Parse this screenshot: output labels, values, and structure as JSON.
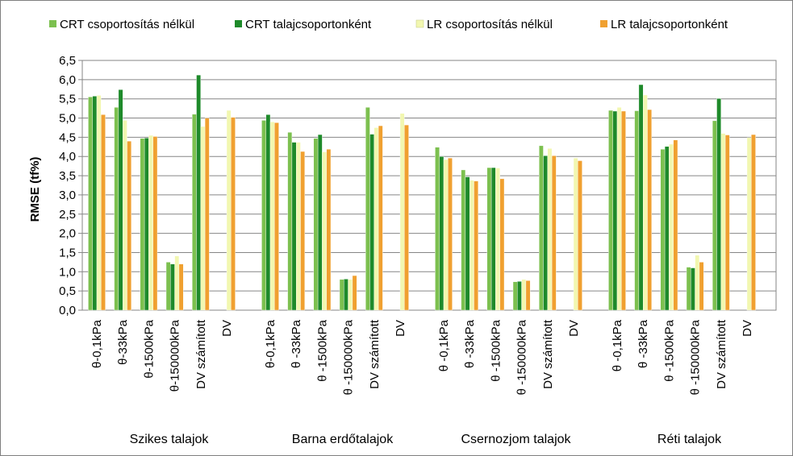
{
  "chart_data": {
    "type": "bar",
    "ylabel": "RMSE (tf%)",
    "ylim": [
      0,
      6.5
    ],
    "ytick_step": 0.5,
    "ytick_labels": [
      "0,0",
      "0,5",
      "1,0",
      "1,5",
      "2,0",
      "2,5",
      "3,0",
      "3,5",
      "4,0",
      "4,5",
      "5,0",
      "5,5",
      "6,0",
      "6,5"
    ],
    "legend_position": "top",
    "series_names": [
      "CRT csoportosítás nélkül",
      "CRT talajcsoportonként",
      "LR csoportosítás nélkül",
      "LR talajcsoportonként"
    ],
    "colors": [
      "#7cc04f",
      "#1e8a2a",
      "#f2f7b0",
      "#f0a030"
    ],
    "groups": [
      {
        "name": "Szikes talajok",
        "categories": [
          "θ-0,1kPa",
          "θ-33kPa",
          "θ-1500kPa",
          "θ-150000kPa",
          "DV számított",
          "DV"
        ],
        "values": [
          [
            5.55,
            5.57,
            5.59,
            5.09
          ],
          [
            5.28,
            5.74,
            4.94,
            4.4
          ],
          [
            4.47,
            4.48,
            4.55,
            4.52
          ],
          [
            1.25,
            1.2,
            1.41,
            1.2
          ],
          [
            5.1,
            6.12,
            4.78,
            5.0
          ],
          [
            null,
            null,
            5.2,
            5.02
          ]
        ]
      },
      {
        "name": "Barna erdőtalajok",
        "categories": [
          "θ-0,1kPa",
          "θ -33kPa",
          "θ -1500kPa",
          "θ -150000kPa",
          "DV számított",
          "DV"
        ],
        "values": [
          [
            4.94,
            5.09,
            4.9,
            4.88
          ],
          [
            4.63,
            4.37,
            4.37,
            4.13
          ],
          [
            4.47,
            4.57,
            4.12,
            4.19
          ],
          [
            0.8,
            0.81,
            0.8,
            0.9
          ],
          [
            5.28,
            4.58,
            4.75,
            4.8
          ],
          [
            null,
            null,
            5.12,
            4.82
          ]
        ]
      },
      {
        "name": "Csernozjom talajok",
        "categories": [
          "θ -0,1kPa",
          "θ -33kPa",
          "θ -1500kPa",
          "θ -150000kPa",
          "DV számított",
          "DV"
        ],
        "values": [
          [
            4.24,
            4.0,
            3.92,
            3.96
          ],
          [
            3.65,
            3.47,
            3.38,
            3.36
          ],
          [
            3.71,
            3.71,
            3.7,
            3.42
          ],
          [
            0.74,
            0.75,
            0.8,
            0.77
          ],
          [
            4.28,
            4.02,
            4.21,
            4.02
          ],
          [
            null,
            null,
            3.96,
            3.89
          ]
        ]
      },
      {
        "name": "Réti talajok",
        "categories": [
          "θ -0,1kPa",
          "θ -33kPa",
          "θ -1500kPa",
          "θ -150000kPa",
          "DV számított",
          "DV"
        ],
        "values": [
          [
            5.2,
            5.18,
            5.28,
            5.18
          ],
          [
            5.19,
            5.87,
            5.6,
            5.22
          ],
          [
            4.19,
            4.26,
            4.32,
            4.43
          ],
          [
            1.12,
            1.1,
            1.43,
            1.25
          ],
          [
            4.93,
            5.51,
            4.6,
            4.56
          ],
          [
            null,
            null,
            4.49,
            4.57
          ]
        ]
      }
    ]
  }
}
